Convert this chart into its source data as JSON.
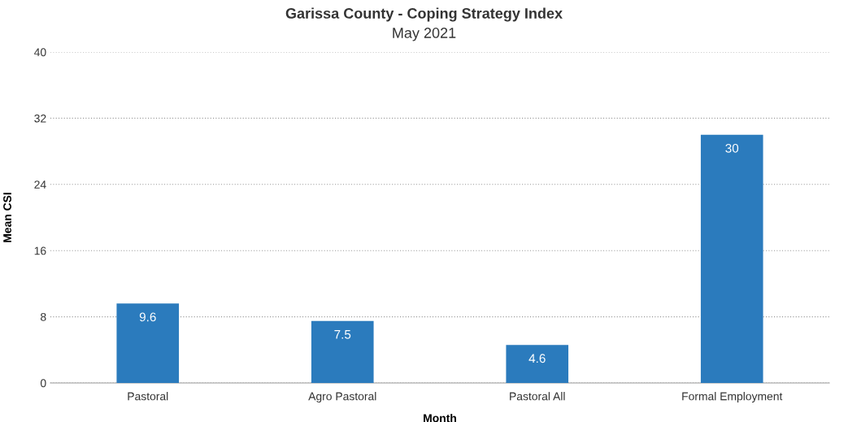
{
  "chart_data": {
    "type": "bar",
    "title": "Garissa County - Coping Strategy Index",
    "subtitle": "May 2021",
    "xlabel": "Month",
    "ylabel": "Mean CSI",
    "categories": [
      "Pastoral",
      "Agro Pastoral",
      "Pastoral All",
      "Formal Employment"
    ],
    "values": [
      9.6,
      7.5,
      4.6,
      30
    ],
    "color": "#2b7bbd",
    "ylim": [
      0,
      40
    ],
    "yticks": [
      0,
      8,
      16,
      24,
      32,
      40
    ],
    "grid": "y",
    "data_labels": true
  }
}
